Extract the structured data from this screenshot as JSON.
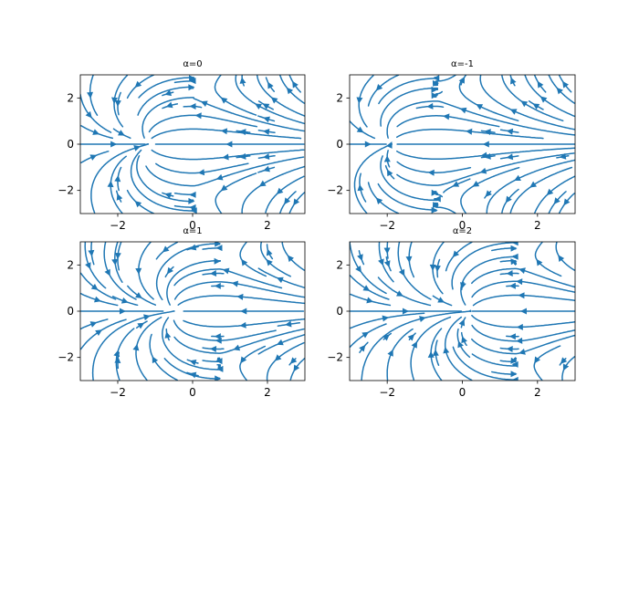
{
  "chart_data": [
    {
      "type": "streamplot",
      "title": "α=0",
      "alpha": 0,
      "xlim": [
        -3,
        3
      ],
      "ylim": [
        -3,
        3
      ],
      "xticks": [
        -2,
        0,
        2
      ],
      "yticks": [
        -2,
        0,
        2
      ],
      "xtick_labels": [
        "−2",
        "0",
        "2"
      ],
      "ytick_labels": [
        "−2",
        "0",
        "2"
      ],
      "line_color": "#1f77b4"
    },
    {
      "type": "streamplot",
      "title": "α=-1",
      "alpha": -1,
      "xlim": [
        -3,
        3
      ],
      "ylim": [
        -3,
        3
      ],
      "xticks": [
        -2,
        0,
        2
      ],
      "yticks": [
        -2,
        0,
        2
      ],
      "xtick_labels": [
        "−2",
        "0",
        "2"
      ],
      "ytick_labels": [
        "−2",
        "0",
        "2"
      ],
      "line_color": "#1f77b4"
    },
    {
      "type": "streamplot",
      "title": "α=1",
      "alpha": 1,
      "xlim": [
        -3,
        3
      ],
      "ylim": [
        -3,
        3
      ],
      "xticks": [
        -2,
        0,
        2
      ],
      "yticks": [
        -2,
        0,
        2
      ],
      "xtick_labels": [
        "−2",
        "0",
        "2"
      ],
      "ytick_labels": [
        "−2",
        "0",
        "2"
      ],
      "line_color": "#1f77b4"
    },
    {
      "type": "streamplot",
      "title": "α=2",
      "alpha": 2,
      "xlim": [
        -3,
        3
      ],
      "ylim": [
        -3,
        3
      ],
      "xticks": [
        -2,
        0,
        2
      ],
      "yticks": [
        -2,
        0,
        2
      ],
      "xtick_labels": [
        "−2",
        "0",
        "2"
      ],
      "ytick_labels": [
        "−2",
        "0",
        "2"
      ],
      "line_color": "#1f77b4"
    }
  ]
}
